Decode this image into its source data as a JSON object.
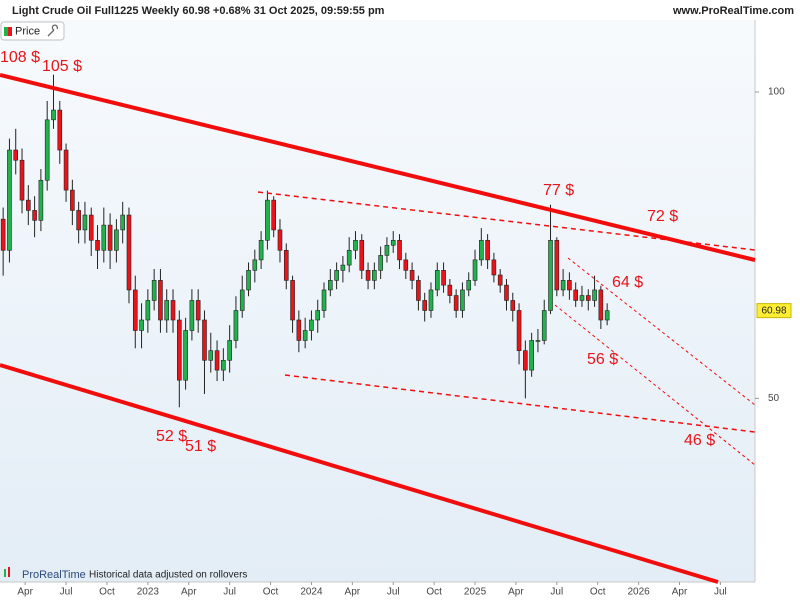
{
  "chart_data": {
    "type": "candlestick",
    "title": "Light Crude Oil Full1225 Weekly 60.98 +0.68% 31 Oct 2025, 09:59:55 pm",
    "source": "www.ProRealTime.com",
    "legend": "Price",
    "footer_brand": "ProRealTime",
    "footer_note": "Historical data adjusted on rollovers",
    "last_price": 60.98,
    "log_scale": true,
    "grid": false,
    "up_color": "#22b14c",
    "down_color": "#e8141a",
    "wick_color": "#222222",
    "ylim": [
      33,
      117.7
    ],
    "yticks": [
      50,
      100
    ],
    "xlim": [
      -0.5,
      119.5
    ],
    "xticks": [
      {
        "value": 3.5,
        "label": "Apr"
      },
      {
        "value": 10,
        "label": "Jul"
      },
      {
        "value": 16.5,
        "label": "Oct"
      },
      {
        "value": 23,
        "label": "2023"
      },
      {
        "value": 29.5,
        "label": "Apr"
      },
      {
        "value": 36,
        "label": "Jul"
      },
      {
        "value": 42.5,
        "label": "Oct"
      },
      {
        "value": 49,
        "label": "2024"
      },
      {
        "value": 55.5,
        "label": "Apr"
      },
      {
        "value": 62,
        "label": "Jul"
      },
      {
        "value": 68.5,
        "label": "Oct"
      },
      {
        "value": 75,
        "label": "2025"
      },
      {
        "value": 81.5,
        "label": "Apr"
      },
      {
        "value": 88,
        "label": "Jul"
      },
      {
        "value": 94.5,
        "label": "Oct"
      },
      {
        "value": 101,
        "label": "2026"
      },
      {
        "value": 107.5,
        "label": "Apr"
      },
      {
        "value": 114,
        "label": "Jul"
      }
    ],
    "open": [
      75.0,
      69.9,
      87.7,
      85.7,
      78.3,
      76.5,
      74.8,
      81.9,
      93.9,
      96.0,
      87.7,
      80.1,
      76.5,
      73.2,
      75.7,
      71.5,
      69.9,
      74.0,
      69.9,
      73.2,
      75.7,
      63.9,
      58.3,
      59.7,
      62.4,
      65.3,
      59.7,
      62.4,
      59.7,
      52.1,
      58.3,
      62.4,
      59.7,
      54.5,
      55.7,
      53.3,
      54.5,
      57.0,
      61.0,
      63.9,
      66.8,
      68.4,
      71.5,
      78.3,
      73.2,
      69.9,
      65.3,
      59.7,
      57.0,
      58.3,
      59.7,
      61.0,
      63.9,
      65.3,
      66.8,
      67.6,
      69.9,
      71.5,
      66.8,
      65.3,
      66.8,
      69.1,
      70.7,
      71.5,
      68.4,
      66.8,
      65.3,
      62.4,
      61.0,
      63.9,
      66.8,
      64.6,
      63.1,
      61.0,
      63.9,
      65.3,
      68.4,
      71.5,
      68.4,
      66.1,
      64.6,
      62.4,
      61.0,
      55.7,
      53.3,
      57.0,
      57.0,
      61.0,
      71.5,
      63.9,
      65.3,
      63.9,
      62.4,
      63.1,
      62.4,
      63.9,
      59.7
    ],
    "high": [
      77,
      90,
      92,
      88,
      81,
      79,
      84,
      98,
      104,
      98,
      89,
      82,
      78,
      78,
      77,
      74,
      77,
      76,
      75,
      78,
      77,
      66,
      62,
      64,
      67,
      67,
      64,
      64,
      61,
      60,
      64,
      64,
      61,
      58,
      57,
      56,
      59,
      63,
      66,
      68,
      70,
      73,
      80,
      79,
      75,
      71,
      66,
      61,
      60,
      61,
      62.5,
      65,
      67,
      68,
      69,
      72,
      73,
      72.5,
      68,
      68,
      70.5,
      72,
      73,
      72.5,
      69.5,
      68,
      66,
      63.5,
      65,
      68,
      68,
      65.5,
      64,
      65,
      66.5,
      70,
      73.5,
      72.5,
      69.5,
      67,
      65.5,
      63.5,
      62,
      57,
      58,
      58.5,
      62.5,
      77.5,
      72,
      67,
      66.5,
      65,
      64.5,
      64,
      66,
      64.5,
      62
    ],
    "low": [
      66,
      68,
      83,
      76,
      74,
      72,
      73,
      80,
      92,
      85,
      78,
      74,
      71,
      71,
      69,
      67,
      68,
      67,
      68,
      71,
      62,
      56,
      56,
      58,
      61,
      58,
      58,
      58,
      49,
      51,
      57,
      58,
      50.5,
      53,
      52,
      52,
      53,
      56,
      60,
      63,
      65,
      67,
      70,
      72,
      68,
      64,
      58,
      55.5,
      56,
      57,
      58,
      60,
      63,
      64,
      65,
      66.5,
      68.5,
      65.5,
      64,
      64,
      65.5,
      68,
      69.5,
      67,
      65.5,
      64,
      61,
      59.5,
      60,
      63,
      63.5,
      62,
      60,
      60,
      63,
      64.5,
      67.5,
      67,
      65,
      63.5,
      61,
      59.5,
      54,
      50,
      52.5,
      55.5,
      56.5,
      60.5,
      63,
      63,
      62.5,
      61.5,
      61.5,
      61,
      61.5,
      58.5,
      59
    ],
    "close": [
      69.9,
      87.7,
      85.7,
      78.3,
      76.5,
      74.8,
      81.9,
      93.9,
      96.0,
      87.7,
      80.1,
      76.5,
      73.2,
      75.7,
      71.5,
      69.9,
      74.0,
      69.9,
      73.2,
      75.7,
      63.9,
      58.3,
      59.7,
      62.4,
      65.3,
      59.7,
      62.4,
      59.7,
      52.1,
      58.3,
      62.4,
      59.7,
      54.5,
      55.7,
      53.3,
      54.5,
      57.0,
      61.0,
      63.9,
      66.8,
      68.4,
      71.5,
      78.3,
      73.2,
      69.9,
      65.3,
      59.7,
      57.0,
      58.3,
      59.7,
      61.0,
      63.9,
      65.3,
      66.8,
      67.6,
      69.9,
      71.5,
      66.8,
      65.3,
      66.8,
      69.1,
      70.7,
      71.5,
      68.4,
      66.8,
      65.3,
      62.4,
      61.0,
      63.9,
      66.8,
      64.6,
      63.1,
      61.0,
      63.9,
      65.3,
      68.4,
      71.5,
      68.4,
      66.1,
      64.6,
      62.4,
      61.0,
      55.7,
      53.3,
      57.0,
      57.0,
      61.0,
      71.5,
      63.9,
      65.3,
      63.9,
      62.4,
      63.1,
      62.4,
      63.9,
      59.7,
      60.98
    ],
    "annotations": [
      "108 $",
      "105 $",
      "77 $",
      "72 $",
      "64 $",
      "56 $",
      "52 $",
      "51 $",
      "46 $"
    ]
  }
}
